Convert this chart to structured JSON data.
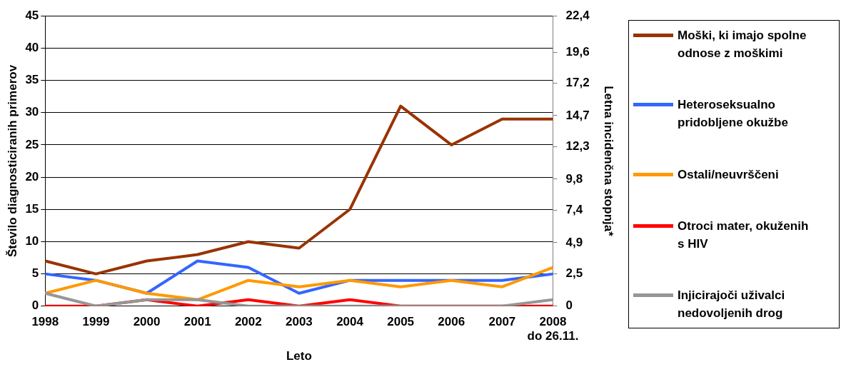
{
  "chart_data": {
    "type": "line",
    "xlabel": "Leto",
    "ylabel": "Število diagnosticiranih primerov",
    "y2label": "Letna incidenčna stopnja*",
    "categories": [
      "1998",
      "1999",
      "2000",
      "2001",
      "2002",
      "2003",
      "2004",
      "2005",
      "2006",
      "2007",
      "2008\ndo 26.11."
    ],
    "series": [
      {
        "name": "Moški, ki imajo spolne odnose z moškimi",
        "color": "#993300",
        "values": [
          7,
          5,
          7,
          8,
          10,
          9,
          15,
          31,
          25,
          29,
          29
        ]
      },
      {
        "name": "Heteroseksualno pridobljene okužbe",
        "color": "#3366ff",
        "values": [
          5,
          4,
          2,
          7,
          6,
          2,
          4,
          4,
          4,
          4,
          5
        ]
      },
      {
        "name": "Ostali/neuvrščeni",
        "color": "#ff9900",
        "values": [
          2,
          4,
          2,
          1,
          4,
          3,
          4,
          3,
          4,
          3,
          6
        ]
      },
      {
        "name": "Otroci mater, okuženih s HIV",
        "color": "#ff0000",
        "values": [
          0,
          0,
          1,
          0,
          1,
          0,
          1,
          0,
          0,
          0,
          0
        ]
      },
      {
        "name": "Injicirajoči uživalci nedovoljenih drog",
        "color": "#969696",
        "values": [
          2,
          0,
          1,
          1,
          0,
          0,
          0,
          0,
          0,
          0,
          1
        ]
      }
    ],
    "ylim": [
      0,
      45
    ],
    "yticks": [
      0,
      5,
      10,
      15,
      20,
      25,
      30,
      35,
      40,
      45
    ],
    "y2lim": [
      0,
      22.4
    ],
    "y2ticks": [
      {
        "value": 0,
        "label": "0"
      },
      {
        "value": 2.5,
        "label": "2,5"
      },
      {
        "value": 4.9,
        "label": "4,9"
      },
      {
        "value": 7.4,
        "label": "7,4"
      },
      {
        "value": 9.8,
        "label": "9,8"
      },
      {
        "value": 12.3,
        "label": "12,3"
      },
      {
        "value": 14.7,
        "label": "14,7"
      },
      {
        "value": 17.2,
        "label": "17,2"
      },
      {
        "value": 19.6,
        "label": "19,6"
      },
      {
        "value": 22.4,
        "label": "22,4"
      }
    ],
    "grid": "y",
    "legend": "right",
    "marker": "none",
    "line_style": "solid"
  }
}
